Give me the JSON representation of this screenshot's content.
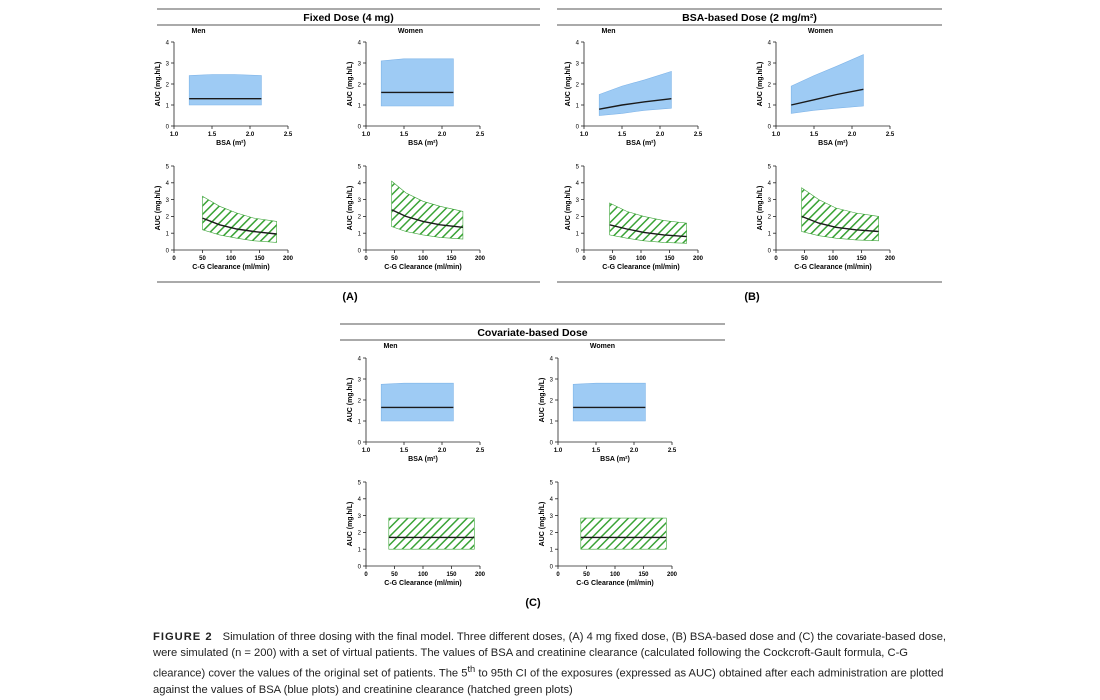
{
  "colors": {
    "blue_band": "#9ecbf4",
    "blue_edge": "#7fb4e8",
    "green_hatch": "#3aa336",
    "median_line": "#1a1a1a",
    "rule": "#555555"
  },
  "panels": [
    {
      "id": "A",
      "title": "Fixed Dose (4 mg)",
      "label": "(A)",
      "columns": [
        "Men",
        "Women"
      ]
    },
    {
      "id": "B",
      "title": "BSA-based Dose (2 mg/m²)",
      "label": "(B)",
      "columns": [
        "Men",
        "Women"
      ]
    },
    {
      "id": "C",
      "title": "Covariate-based Dose",
      "label": "(C)",
      "columns": [
        "Men",
        "Women"
      ]
    }
  ],
  "axes": {
    "bsa": {
      "type": "area",
      "xlabel": "BSA (m²)",
      "ylabel": "AUC (mg.h/L)",
      "xlim": [
        1.0,
        2.5
      ],
      "ylim": [
        0,
        4
      ],
      "xticks": [
        "1.0",
        "1.5",
        "2.0",
        "2.5"
      ],
      "yticks": [
        "0",
        "1",
        "2",
        "3",
        "4"
      ]
    },
    "cg": {
      "type": "area",
      "xlabel": "C-G Clearance (ml/min)",
      "ylabel": "AUC (mg.h/L)",
      "xlim": [
        0,
        200
      ],
      "ylim": [
        0,
        5
      ],
      "xticks": [
        "0",
        "50",
        "100",
        "150",
        "200"
      ],
      "yticks": [
        "0",
        "1",
        "2",
        "3",
        "4",
        "5"
      ]
    }
  },
  "chart_data": [
    {
      "panel": "A",
      "sex": "Men",
      "type": "area",
      "x_axis": "bsa",
      "x": [
        1.2,
        1.5,
        1.8,
        2.15
      ],
      "p5": [
        1.0,
        1.0,
        1.0,
        1.0
      ],
      "median": [
        1.3,
        1.3,
        1.3,
        1.3
      ],
      "p95": [
        2.4,
        2.45,
        2.45,
        2.4
      ]
    },
    {
      "panel": "A",
      "sex": "Women",
      "type": "area",
      "x_axis": "bsa",
      "x": [
        1.2,
        1.5,
        1.8,
        2.15
      ],
      "p5": [
        0.95,
        0.95,
        0.95,
        0.95
      ],
      "median": [
        1.6,
        1.6,
        1.6,
        1.6
      ],
      "p95": [
        3.1,
        3.2,
        3.2,
        3.2
      ]
    },
    {
      "panel": "A",
      "sex": "Men",
      "type": "area",
      "x_axis": "cg",
      "hatched": true,
      "x": [
        50,
        80,
        110,
        140,
        180
      ],
      "p5": [
        1.2,
        0.9,
        0.7,
        0.55,
        0.45
      ],
      "median": [
        1.9,
        1.5,
        1.25,
        1.1,
        0.95
      ],
      "p95": [
        3.2,
        2.6,
        2.2,
        1.9,
        1.7
      ]
    },
    {
      "panel": "A",
      "sex": "Women",
      "type": "area",
      "x_axis": "cg",
      "hatched": true,
      "x": [
        45,
        70,
        100,
        130,
        170
      ],
      "p5": [
        1.4,
        1.1,
        0.9,
        0.75,
        0.65
      ],
      "median": [
        2.4,
        2.0,
        1.7,
        1.5,
        1.35
      ],
      "p95": [
        4.1,
        3.4,
        2.9,
        2.6,
        2.3
      ]
    },
    {
      "panel": "B",
      "sex": "Men",
      "type": "area",
      "x_axis": "bsa",
      "x": [
        1.2,
        1.5,
        1.8,
        2.15
      ],
      "p5": [
        0.5,
        0.6,
        0.75,
        0.85
      ],
      "median": [
        0.8,
        1.0,
        1.15,
        1.3
      ],
      "p95": [
        1.5,
        1.9,
        2.2,
        2.6
      ]
    },
    {
      "panel": "B",
      "sex": "Women",
      "type": "area",
      "x_axis": "bsa",
      "x": [
        1.2,
        1.5,
        1.8,
        2.15
      ],
      "p5": [
        0.6,
        0.75,
        0.85,
        0.95
      ],
      "median": [
        1.0,
        1.25,
        1.5,
        1.75
      ],
      "p95": [
        1.9,
        2.4,
        2.85,
        3.4
      ]
    },
    {
      "panel": "B",
      "sex": "Men",
      "type": "area",
      "x_axis": "cg",
      "hatched": true,
      "x": [
        45,
        75,
        105,
        140,
        180
      ],
      "p5": [
        0.9,
        0.7,
        0.55,
        0.45,
        0.4
      ],
      "median": [
        1.5,
        1.25,
        1.05,
        0.9,
        0.8
      ],
      "p95": [
        2.8,
        2.3,
        2.0,
        1.75,
        1.6
      ]
    },
    {
      "panel": "B",
      "sex": "Women",
      "type": "area",
      "x_axis": "cg",
      "hatched": true,
      "x": [
        45,
        75,
        105,
        140,
        180
      ],
      "p5": [
        1.1,
        0.85,
        0.7,
        0.6,
        0.55
      ],
      "median": [
        2.0,
        1.6,
        1.35,
        1.2,
        1.1
      ],
      "p95": [
        3.7,
        3.0,
        2.5,
        2.2,
        2.0
      ]
    },
    {
      "panel": "C",
      "sex": "Men",
      "type": "area",
      "x_axis": "bsa",
      "x": [
        1.2,
        1.5,
        1.8,
        2.15
      ],
      "p5": [
        1.0,
        1.0,
        1.0,
        1.0
      ],
      "median": [
        1.65,
        1.65,
        1.65,
        1.65
      ],
      "p95": [
        2.75,
        2.8,
        2.8,
        2.8
      ]
    },
    {
      "panel": "C",
      "sex": "Women",
      "type": "area",
      "x_axis": "bsa",
      "x": [
        1.2,
        1.5,
        1.8,
        2.15
      ],
      "p5": [
        1.0,
        1.0,
        1.0,
        1.0
      ],
      "median": [
        1.65,
        1.65,
        1.65,
        1.65
      ],
      "p95": [
        2.75,
        2.8,
        2.8,
        2.8
      ]
    },
    {
      "panel": "C",
      "sex": "Men",
      "type": "area",
      "x_axis": "cg",
      "hatched": true,
      "x": [
        40,
        80,
        120,
        160,
        190
      ],
      "p5": [
        1.0,
        1.0,
        1.0,
        1.0,
        1.0
      ],
      "median": [
        1.7,
        1.7,
        1.7,
        1.7,
        1.7
      ],
      "p95": [
        2.85,
        2.85,
        2.85,
        2.85,
        2.85
      ]
    },
    {
      "panel": "C",
      "sex": "Women",
      "type": "area",
      "x_axis": "cg",
      "hatched": true,
      "x": [
        40,
        80,
        120,
        160,
        190
      ],
      "p5": [
        1.0,
        1.0,
        1.0,
        1.0,
        1.0
      ],
      "median": [
        1.7,
        1.7,
        1.7,
        1.7,
        1.7
      ],
      "p95": [
        2.85,
        2.85,
        2.85,
        2.85,
        2.85
      ]
    }
  ],
  "caption": {
    "label": "FIGURE 2",
    "text_before_sup": "Simulation of three dosing with the final model. Three different doses, (A) 4 mg fixed dose, (B) BSA-based dose and (C) the covariate-based dose, were simulated (n = 200) with a set of virtual patients. The values of BSA and creatinine clearance (calculated following the Cockcroft-Gault formula, C-G clearance) cover the values of the original set of patients. The 5",
    "sup": "th",
    "text_after_sup": " to 95th CI of the exposures (expressed as AUC) obtained after each administration are plotted against the values of BSA (blue plots) and creatinine clearance (hatched green plots)"
  }
}
